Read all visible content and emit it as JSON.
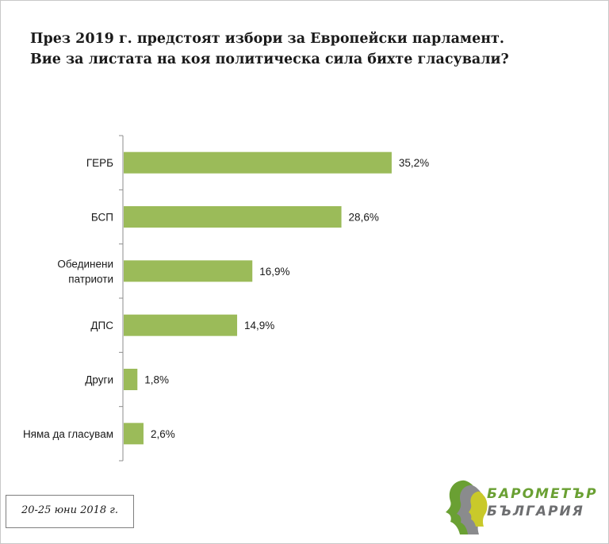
{
  "title": {
    "line1": "През 2019 г. предстоят избори за Европейски парламент.",
    "line2": "Вие за листата на коя политическа сила бихте гласували?"
  },
  "chart_data": {
    "type": "bar",
    "orientation": "horizontal",
    "title": "През 2019 г. предстоят избори за Европейски парламент. Вие за листата на коя политическа сила бихте гласували?",
    "categories": [
      [
        "ГЕРБ"
      ],
      [
        "БСП"
      ],
      [
        "Обединени",
        "патриоти"
      ],
      [
        "ДПС"
      ],
      [
        "Други"
      ],
      [
        "Няма да гласувам"
      ]
    ],
    "values": [
      35.2,
      28.6,
      16.9,
      14.9,
      1.8,
      2.6
    ],
    "value_labels": [
      "35,2%",
      "28,6%",
      "16,9%",
      "14,9%",
      "1,8%",
      "2,6%"
    ],
    "xlim": [
      0,
      40
    ],
    "xlabel": "",
    "ylabel": "",
    "grid": false,
    "bar_color": "#9bbb59"
  },
  "date_note": "20-25 юни 2018 г.",
  "logo": {
    "line1": "БАРОМЕТЪР",
    "line2": "БЪЛГАРИЯ",
    "color_green": "#6aa033",
    "color_gray": "#6d6e70",
    "color_yellow": "#c9c92a"
  }
}
